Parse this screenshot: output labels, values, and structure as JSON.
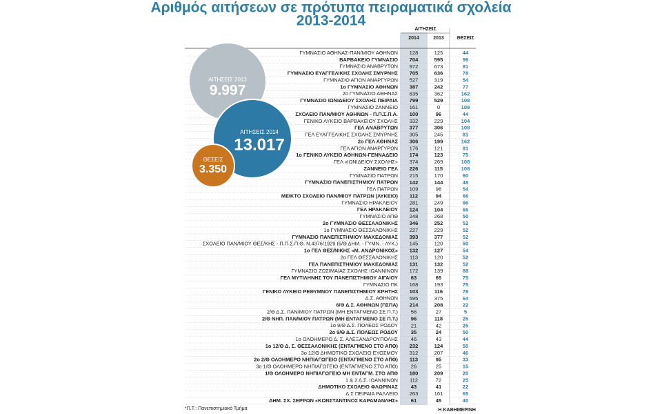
{
  "header": {
    "title_line1": "Αριθμός αιτήσεων σε πρότυπα πειραματικά σχολεία",
    "title_line2": "2013-2014"
  },
  "bubbles": [
    {
      "label": "ΑΙΤΗΣΕΙΣ 2013",
      "value": "9.997"
    },
    {
      "label": "ΑΙΤΗΣΕΙΣ 2014",
      "value": "13.017"
    },
    {
      "label": "ΘΕΣΕΙΣ",
      "value": "3.350"
    }
  ],
  "table": {
    "group_header": "ΑΙΤΗΣΕΙΣ",
    "columns": [
      "2014",
      "2013",
      "ΘΕΣΕΙΣ"
    ],
    "rows": [
      [
        "ΓΥΜΝΑΣΙΟ ΑΘΗΝΑΣ-ΠΑΝ/ΜΙΟΥ ΑΘΗΝΩΝ",
        128,
        125,
        44
      ],
      [
        "ΒΑΡΒΑΚΕΙΟ ΓΥΜΝΑΣΙΟ",
        704,
        595,
        96
      ],
      [
        "ΓΥΜΝΑΣΙΟ ΑΝΑΒΡΥΤΩΝ",
        972,
        673,
        81
      ],
      [
        "ΓΥΜΝΑΣΙΟ ΕΥΑΓΓΕΛΙΚΗΣ ΣΧΟΛΗΣ ΣΜΥΡΝΗΣ",
        705,
        636,
        78
      ],
      [
        "ΓΥΜΝΑΣΙΟ ΑΓΙΩΝ ΑΝΑΡΓΥΡΩΝ",
        527,
        319,
        54
      ],
      [
        "1ο ΓΥΜΝΑΣΙΟ ΑΘΗΝΩΝ",
        387,
        242,
        77
      ],
      [
        "2ο ΓΥΜΝΑΣΙΟ ΑΘΗΝΑΣ",
        635,
        362,
        162
      ],
      [
        "ΓΥΜΝΑΣΙΟ ΙΩΝΙΔΕΙΟΥ ΣΧΟΛΗΣ ΠΕΙΡΑΙΑ",
        799,
        529,
        108
      ],
      [
        "ΓΥΜΝΑΣΙΟ ΖΑΝΝΕΙΟ",
        161,
        0,
        108
      ],
      [
        "ΣΧΟΛΕΙΟ ΠΑΝ/ΜΙΟΥ ΑΘΗΝΩΝ - Π.Π.Σ.Π.Α.",
        100,
        96,
        44
      ],
      [
        "ΓΕΝΙΚΟ ΛΥΚΕΙΟ ΒΑΡΒΑΚΕΙΟΥ ΣΧΟΛΗΣ",
        332,
        229,
        104
      ],
      [
        "ΓΕΛ ΑΝΑΒΡΥΤΩΝ",
        377,
        306,
        108
      ],
      [
        "ΓΕΛ ΕΥΑΓΓΕΛΙΚΗΣ ΣΧΟΛΗΣ ΣΜΥΡΝΗΣ",
        305,
        245,
        81
      ],
      [
        "2ο ΓΕΛ ΑΘΗΝΑΣ",
        306,
        199,
        162
      ],
      [
        "ΓΕΛ ΑΓΙΩΝ ΑΝΑΡΓΥΡΩΝ",
        176,
        121,
        81
      ],
      [
        "1ο ΓΕΝΙΚΟ ΛΥΚΕΙΟ ΑΘΗΝΩΝ-ΓΕΝΝΑΔΕΙΟ",
        174,
        123,
        75
      ],
      [
        "ΓΕΛ «ΙΩΝΙΔΕΙΟΥ ΣΧΟΛΗΣ»",
        374,
        269,
        108
      ],
      [
        "ΖΑΝΝΕΙΟ ΓΕΛ",
        226,
        115,
        108
      ],
      [
        "ΓΥΜΝΑΣΙΟ ΠΑΤΡΩΝ",
        215,
        170,
        60
      ],
      [
        "ΓΥΜΝΑΣΙΟ ΠΑΝΕΠΙΣΤΗΜΙΟΥ ΠΑΤΡΩΝ",
        142,
        144,
        48
      ],
      [
        "ΓΕΛ ΠΑΤΡΩΝ",
        109,
        98,
        54
      ],
      [
        "ΜΕΙΚΤΟ ΣΧΟΛΕΙΟ ΠΑΝ/ΜΙΟΥ ΠΑΤΡΩΝ (ΛΥΚΕΙΟ)",
        112,
        94,
        66
      ],
      [
        "ΓΥΜΝΑΣΙΟ ΗΡΑΚΛΕΙΟΥ",
        281,
        249,
        96
      ],
      [
        "ΓΕΛ ΗΡΑΚΛΕΙΟΥ",
        124,
        104,
        66
      ],
      [
        "ΓΥΜΝΑΣΙΟ ΑΠΘ",
        248,
        268,
        50
      ],
      [
        "2ο ΓΥΜΝΑΣΙΟ ΘΕΣΣΑΛΟΝΙΚΗΣ",
        346,
        252,
        52
      ],
      [
        "1ο ΓΥΜΝΑΣΙΟ ΘΕΣΣΑΛΟΝΙΚΗΣ",
        227,
        229,
        52
      ],
      [
        "ΓΥΜΝΑΣΙΟ ΠΑΝΕΠΙΣΤΗΜΙΟΥ ΜΑΚΕΔΟΝΙΑΣ",
        393,
        377,
        52
      ],
      [
        "ΣΧΟΛΕΙΟ ΠΑΝ/ΜΙΟΥ ΘΕΣ/ΚΗΣ - Π.Π.Σ.Π.Θ. Ν.4376/1929 (6/Θ ΔΗΜ. - ΓΥΜΝ. - ΛΥΚ.)",
        145,
        120,
        50
      ],
      [
        "1ο ΓΕΛ ΘΕΣ/ΝΙΚΗΣ «Μ. ΑΝΔΡΟΝΙΚΟΣ»",
        132,
        127,
        54
      ],
      [
        "2ο ΓΕΛ ΘΕΣΣΑΛΟΝΙΚΗΣ",
        113,
        120,
        52
      ],
      [
        "ΓΕΛ ΠΑΝΕΠΙΣΤΗΜΙΟΥ ΜΑΚΕΔΟΝΙΑΣ",
        131,
        132,
        52
      ],
      [
        "ΓΥΜΝΑΣΙΟ ΖΩΣΙΜΑΙΑΣ ΣΧΟΛΗΣ ΙΩΑΝΝΙΝΩΝ",
        172,
        139,
        88
      ],
      [
        "ΓΕΛ ΜΥΤΙΛΗΝΗΣ ΤΟΥ ΠΑΝΕΠΙΣΤΗΜΙΟΥ ΑΙΓΑΙΟΥ",
        63,
        65,
        75
      ],
      [
        "ΓΥΜΝΑΣΙΟ ΠΚ",
        168,
        193,
        75
      ],
      [
        "ΓΕΝΙΚΟ ΛΥΚΕΙΟ ΡΕΘΥΜΝΟΥ ΠΑΝΕΠΙΣΤΗΜΙΟΥ ΚΡΗΤΗΣ",
        103,
        116,
        78
      ],
      [
        "Δ.Σ. ΑΘΗΝΩΝ",
        595,
        375,
        64
      ],
      [
        "6/Θ Δ.Σ. ΑΘΗΝΩΝ (ΠΣΠΑ)",
        214,
        208,
        22
      ],
      [
        "2/Θ Δ.Σ. ΠΑΝ/ΜΙΟΥ ΠΑΤΡΩΝ (ΜΗ ΕΝΤΑΓΜΕΝΟ ΣΕ Π.Τ.)",
        56,
        27,
        5
      ],
      [
        "2/Θ ΝΗΠ. ΠΑΝ/ΜΙΟΥ ΠΑΤΡΩΝ (ΜΗ ΕΝΤΑΓΜΕΝΟ ΣΕ Π.Τ.)",
        96,
        118,
        25
      ],
      [
        "1ο 9/Θ Δ.Σ. ΠΟΛΕΩΣ ΡΟΔΟΥ",
        21,
        42,
        25
      ],
      [
        "2ο 9/Θ Δ.Σ. ΠΟΛΕΩΣ ΡΟΔΟΥ",
        35,
        24,
        50
      ],
      [
        "1ο ΟΛΟΗΜΕΡΟ Δ. Σ. ΑΛΕΞΑΝΔΡΟΥΠΟΛΗΣ",
        46,
        43,
        44
      ],
      [
        "1ο 12/Θ Δ. Σ. ΘΕΣΣΑΛΟΝΙΚΗΣ (ΕΝΤΑΓΜΕΝΟ ΣΤΟ ΑΠΘ)",
        232,
        124,
        50
      ],
      [
        "3ο 12/Θ ΔΗΜΟΤΙΚΟ ΣΧΟΛΕΙΟ ΕΥΟΣΜΟΥ",
        312,
        207,
        46
      ],
      [
        "2ο 2/Θ ΟΛΟΗΜΕΡΟ ΝΗΠΙΑΓΩΓΕΙΟ (ΕΝΤΑΓΜΕΝΟ ΣΤΟ ΑΠΘ)",
        113,
        95,
        33
      ],
      [
        "3ο 1/Θ ΟΛΟΗΜΕΡΟ ΝΗΠΙΑΓΩΓΕΙΟ (ΕΝΤΑΓΜΕΝΟ ΣΤΟ ΑΠΘ)",
        26,
        25,
        15
      ],
      [
        "1/Θ ΟΛΟΗΜΕΡΟ ΝΗΠΙΑΓΩΓΕΙΟ ΜΗ ΕΝΤΑΓΜ. ΣΤΟ ΑΠΘ",
        180,
        209,
        20
      ],
      [
        "1 & 2 Δ.Σ. ΙΩΑΝΝΙΝΩΝ",
        112,
        72,
        25
      ],
      [
        "ΔΗΜΟΤΙΚΟ ΣΧΟΛΕΙΟ ΦΛΩΡΙΝΑΣ",
        43,
        41,
        22
      ],
      [
        "Δ.Σ ΠΕΙΡΑΙΑ ΡΑΛΛΕΙΟ",
        263,
        161,
        65
      ],
      [
        "ΔΗΜ. ΣΧ. ΣΕΡΡΩΝ «ΚΩΝΣΤΑΝΤΙΝΟΣ ΚΑΡΑΜΑΝΛΗΣ»",
        61,
        45,
        40
      ]
    ]
  },
  "footer": {
    "note": "*Π.Τ.: Πανεπιστημιακό Τμήμα",
    "source": "Η ΚΑΘΗΜΕΡΙΝΗ"
  }
}
